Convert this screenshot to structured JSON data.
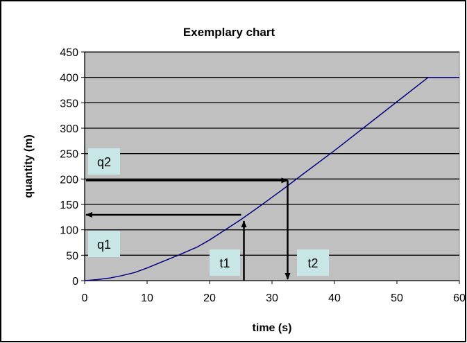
{
  "chart_data": {
    "type": "line",
    "title": "Exemplary chart",
    "xlabel": "time (s)",
    "ylabel": "quantity (m)",
    "xlim": [
      0,
      60
    ],
    "ylim": [
      0,
      450
    ],
    "xticks": [
      0,
      10,
      20,
      30,
      40,
      50,
      60
    ],
    "yticks": [
      0,
      50,
      100,
      150,
      200,
      250,
      300,
      350,
      400,
      450
    ],
    "grid": "horizontal",
    "legend": "none",
    "series": [
      {
        "color": "#000080",
        "x": [
          0,
          2,
          4,
          6,
          8,
          10,
          12,
          15,
          18,
          20,
          22,
          25,
          28,
          30,
          32,
          35,
          40,
          45,
          50,
          55,
          60
        ],
        "y": [
          0,
          2,
          5,
          10,
          16,
          25,
          35,
          50,
          66,
          80,
          96,
          120,
          146,
          164,
          182,
          210,
          256,
          304,
          352,
          400,
          400
        ]
      }
    ],
    "annotations": [
      {
        "label": "q1",
        "value": 120
      },
      {
        "label": "q2",
        "value": 185
      },
      {
        "label": "t1",
        "value": 25.5
      },
      {
        "label": "t2",
        "value": 32.5
      }
    ]
  },
  "colors": {
    "plot_background": "#c0c0c0",
    "line": "#000080",
    "label_box": "#c8e6e6"
  }
}
